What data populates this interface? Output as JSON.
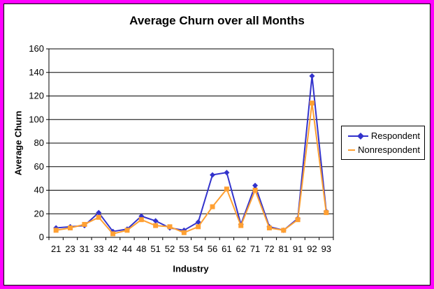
{
  "window": {
    "border_color": "#ff00ff",
    "background": "#ffffff"
  },
  "chart_data": {
    "type": "line",
    "title": "Average Churn over all Months",
    "xlabel": "Industry",
    "ylabel": "Average Churn",
    "categories": [
      "21",
      "23",
      "31",
      "33",
      "42",
      "44",
      "48",
      "51",
      "52",
      "53",
      "54",
      "56",
      "61",
      "62",
      "71",
      "72",
      "81",
      "91",
      "92",
      "93"
    ],
    "series": [
      {
        "name": "Respondent",
        "color": "#3333cc",
        "marker": "diamond",
        "values": [
          8,
          9,
          10,
          21,
          5,
          7,
          18,
          14,
          8,
          6,
          13,
          53,
          55,
          11,
          44,
          9,
          6,
          16,
          137,
          22
        ]
      },
      {
        "name": "Nonrespondent",
        "color": "#ffa033",
        "marker": "square",
        "values": [
          6,
          8,
          11,
          17,
          3,
          6,
          15,
          10,
          9,
          4,
          9,
          26,
          41,
          10,
          40,
          8,
          6,
          15,
          114,
          21
        ]
      }
    ],
    "ylim": [
      0,
      160
    ],
    "yticks": [
      0,
      20,
      40,
      60,
      80,
      100,
      120,
      140,
      160
    ],
    "grid": true,
    "grid_color": "#000000",
    "axis_color": "#000000",
    "tick_label_color": "#000000",
    "legend_position": "right"
  }
}
